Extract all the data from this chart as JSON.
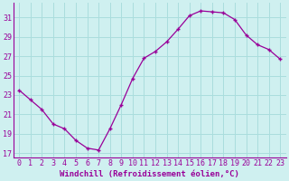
{
  "hours": [
    0,
    1,
    2,
    3,
    4,
    5,
    6,
    7,
    8,
    9,
    10,
    11,
    12,
    13,
    14,
    15,
    16,
    17,
    18,
    19,
    20,
    21,
    22,
    23
  ],
  "values": [
    23.5,
    22.5,
    21.5,
    20.0,
    19.5,
    18.3,
    17.5,
    17.3,
    19.5,
    22.0,
    24.7,
    26.8,
    27.5,
    28.5,
    29.8,
    31.2,
    31.7,
    31.6,
    31.5,
    30.8,
    29.2,
    28.2,
    27.7,
    26.7
  ],
  "line_color": "#990099",
  "marker": "+",
  "marker_size": 3.5,
  "marker_linewidth": 1.0,
  "bg_color": "#cff0f0",
  "grid_color": "#aadddd",
  "xlabel": "Windchill (Refroidissement éolien,°C)",
  "xlabel_color": "#990099",
  "xlabel_fontsize": 6.5,
  "tick_color": "#990099",
  "tick_fontsize": 6,
  "ylim": [
    16.5,
    32.5
  ],
  "yticks": [
    17,
    19,
    21,
    23,
    25,
    27,
    29,
    31
  ],
  "xtick_labels": [
    "0",
    "1",
    "2",
    "3",
    "4",
    "5",
    "6",
    "7",
    "8",
    "9",
    "10",
    "11",
    "12",
    "13",
    "14",
    "15",
    "16",
    "17",
    "18",
    "19",
    "20",
    "21",
    "22",
    "23"
  ]
}
